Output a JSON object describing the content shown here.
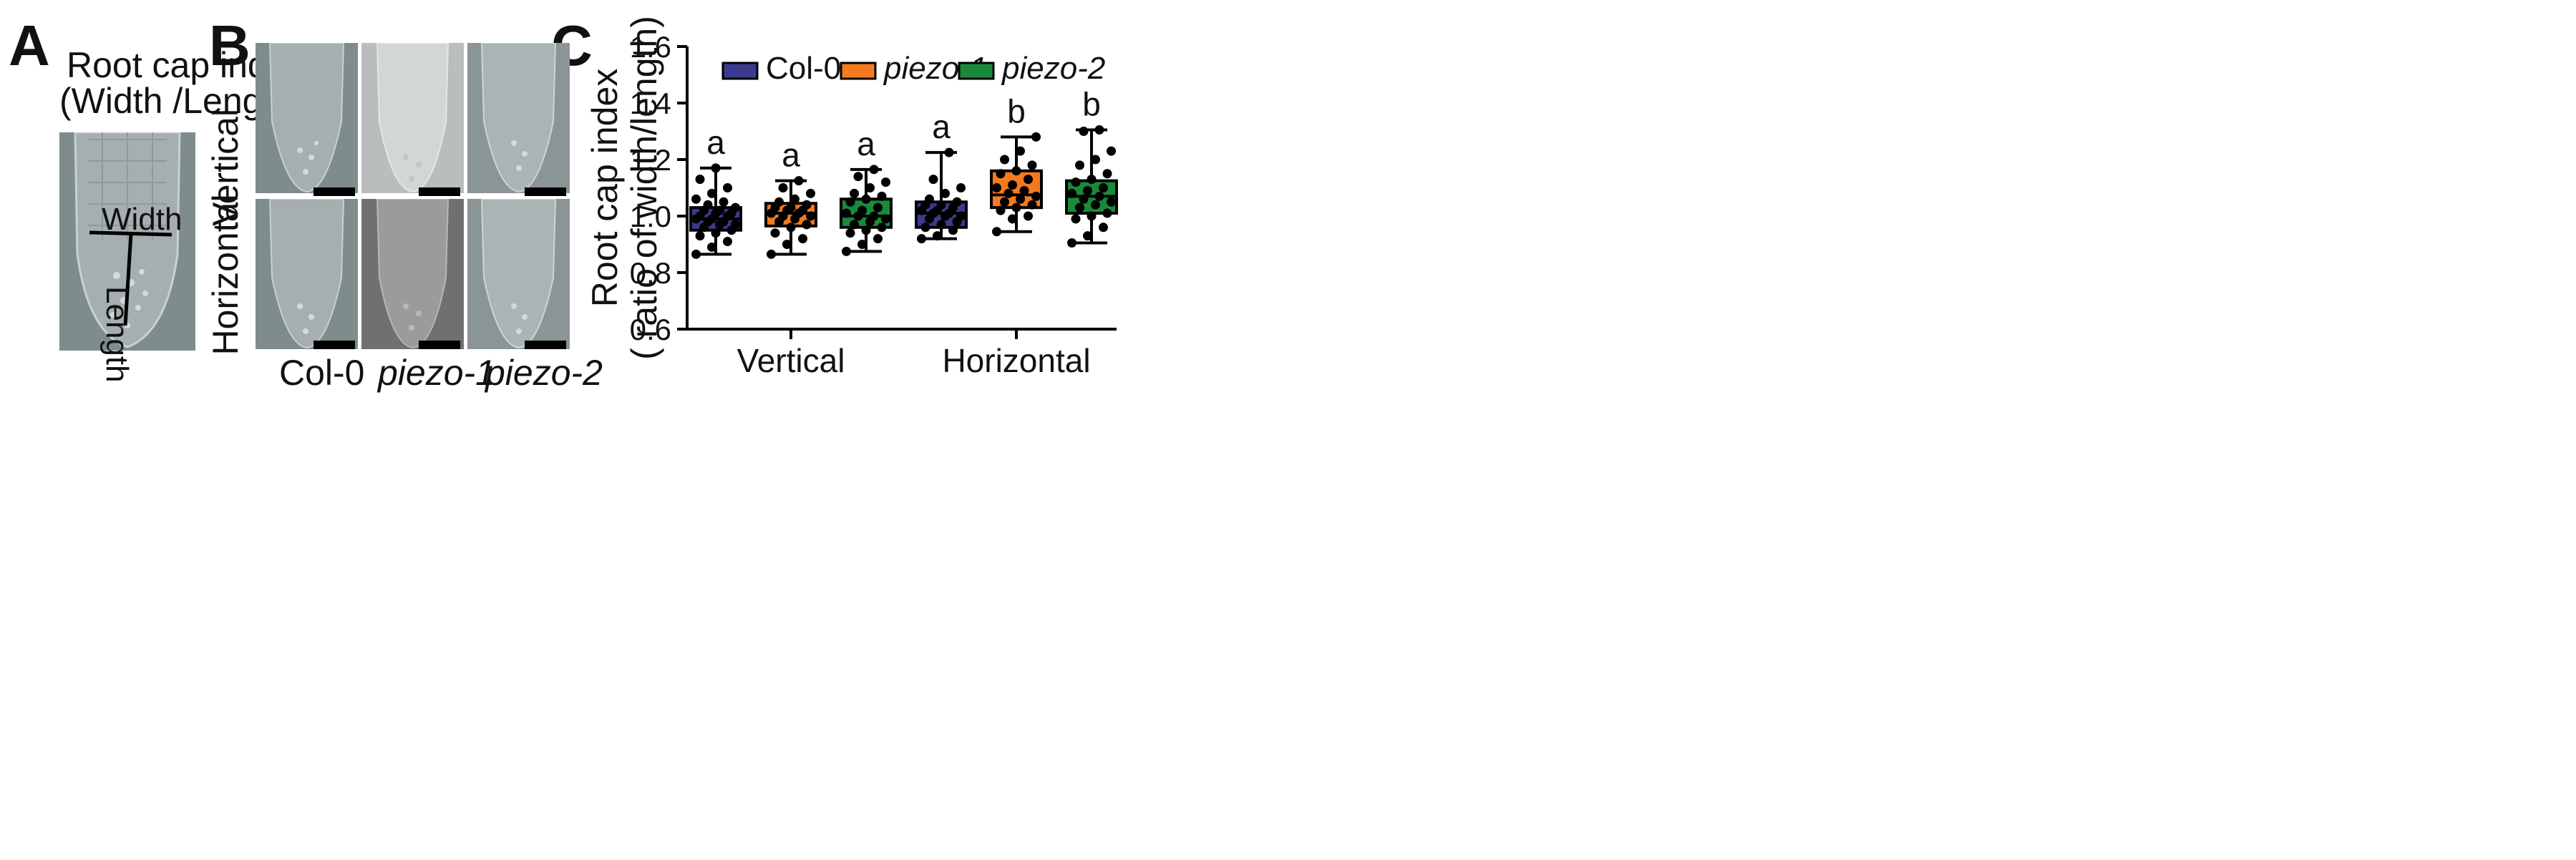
{
  "panels": {
    "a": {
      "letter": "A",
      "caption_line1": "Root cap index",
      "caption_line2": "(Width /Length)",
      "width_label": "Width",
      "length_label": "Length"
    },
    "b": {
      "letter": "B",
      "row_labels": [
        "Vertical",
        "Horizontal"
      ],
      "col_labels": [
        "Col-0",
        "piezo-1",
        "piezo-2"
      ]
    },
    "c": {
      "letter": "C"
    }
  },
  "colors": {
    "Col-0": "#3b3a8f",
    "piezo-1": "#f47a20",
    "piezo-2": "#1a8a3a",
    "micrograph_bg": "#7f8c8e"
  },
  "chart_data": {
    "type": "box",
    "categories": [
      "Vertical",
      "Horizontal"
    ],
    "ylabel_line1": "Root cap index",
    "ylabel_line2": "( ratio of width/length)",
    "ylim": [
      0.6,
      1.6
    ],
    "yticks": [
      "0.6",
      "0.8",
      "1.0",
      "1.2",
      "1.4",
      "1.6"
    ],
    "legend_position": "top",
    "series": [
      {
        "name": "Col-0",
        "boxes": [
          {
            "group": "Vertical",
            "min": 0.865,
            "q1": 0.95,
            "median": 0.99,
            "q3": 1.03,
            "max": 1.17,
            "letter": "a",
            "points": [
              0.865,
              0.89,
              0.91,
              0.93,
              0.94,
              0.95,
              0.96,
              0.97,
              0.97,
              0.98,
              0.98,
              0.99,
              0.99,
              1.0,
              1.0,
              1.01,
              1.01,
              1.02,
              1.02,
              1.03,
              1.04,
              1.05,
              1.06,
              1.08,
              1.1,
              1.13,
              1.17
            ]
          },
          {
            "group": "Horizontal",
            "min": 0.92,
            "q1": 0.96,
            "median": 1.01,
            "q3": 1.05,
            "max": 1.225,
            "letter": "a",
            "points": [
              0.92,
              0.93,
              0.95,
              0.96,
              0.97,
              0.98,
              0.99,
              1.0,
              1.0,
              1.01,
              1.01,
              1.02,
              1.02,
              1.03,
              1.04,
              1.04,
              1.05,
              1.06,
              1.08,
              1.1,
              1.13,
              1.225
            ]
          }
        ]
      },
      {
        "name": "piezo-1",
        "boxes": [
          {
            "group": "Vertical",
            "min": 0.865,
            "q1": 0.965,
            "median": 1.01,
            "q3": 1.045,
            "max": 1.125,
            "letter": "a",
            "points": [
              0.865,
              0.9,
              0.92,
              0.94,
              0.96,
              0.97,
              0.98,
              0.99,
              1.0,
              1.0,
              1.01,
              1.01,
              1.02,
              1.02,
              1.03,
              1.03,
              1.04,
              1.05,
              1.06,
              1.08,
              1.1,
              1.125
            ]
          },
          {
            "group": "Horizontal",
            "min": 0.945,
            "q1": 1.03,
            "median": 1.075,
            "q3": 1.16,
            "max": 1.28,
            "letter": "b",
            "points": [
              0.945,
              0.99,
              1.0,
              1.02,
              1.03,
              1.04,
              1.05,
              1.06,
              1.07,
              1.08,
              1.09,
              1.1,
              1.11,
              1.13,
              1.15,
              1.16,
              1.18,
              1.2,
              1.23,
              1.28
            ]
          }
        ]
      },
      {
        "name": "piezo-2",
        "boxes": [
          {
            "group": "Vertical",
            "min": 0.875,
            "q1": 0.96,
            "median": 1.0,
            "q3": 1.06,
            "max": 1.165,
            "letter": "a",
            "points": [
              0.875,
              0.9,
              0.92,
              0.94,
              0.95,
              0.96,
              0.97,
              0.98,
              0.99,
              1.0,
              1.0,
              1.01,
              1.02,
              1.03,
              1.05,
              1.06,
              1.07,
              1.08,
              1.1,
              1.12,
              1.14,
              1.165
            ]
          },
          {
            "group": "Horizontal",
            "min": 0.905,
            "q1": 1.01,
            "median": 1.07,
            "q3": 1.125,
            "max": 1.305,
            "letter": "b",
            "points": [
              0.905,
              0.93,
              0.96,
              0.99,
              1.0,
              1.01,
              1.03,
              1.04,
              1.05,
              1.06,
              1.07,
              1.08,
              1.09,
              1.1,
              1.12,
              1.13,
              1.15,
              1.18,
              1.2,
              1.23,
              1.3,
              1.305
            ]
          }
        ]
      }
    ]
  }
}
